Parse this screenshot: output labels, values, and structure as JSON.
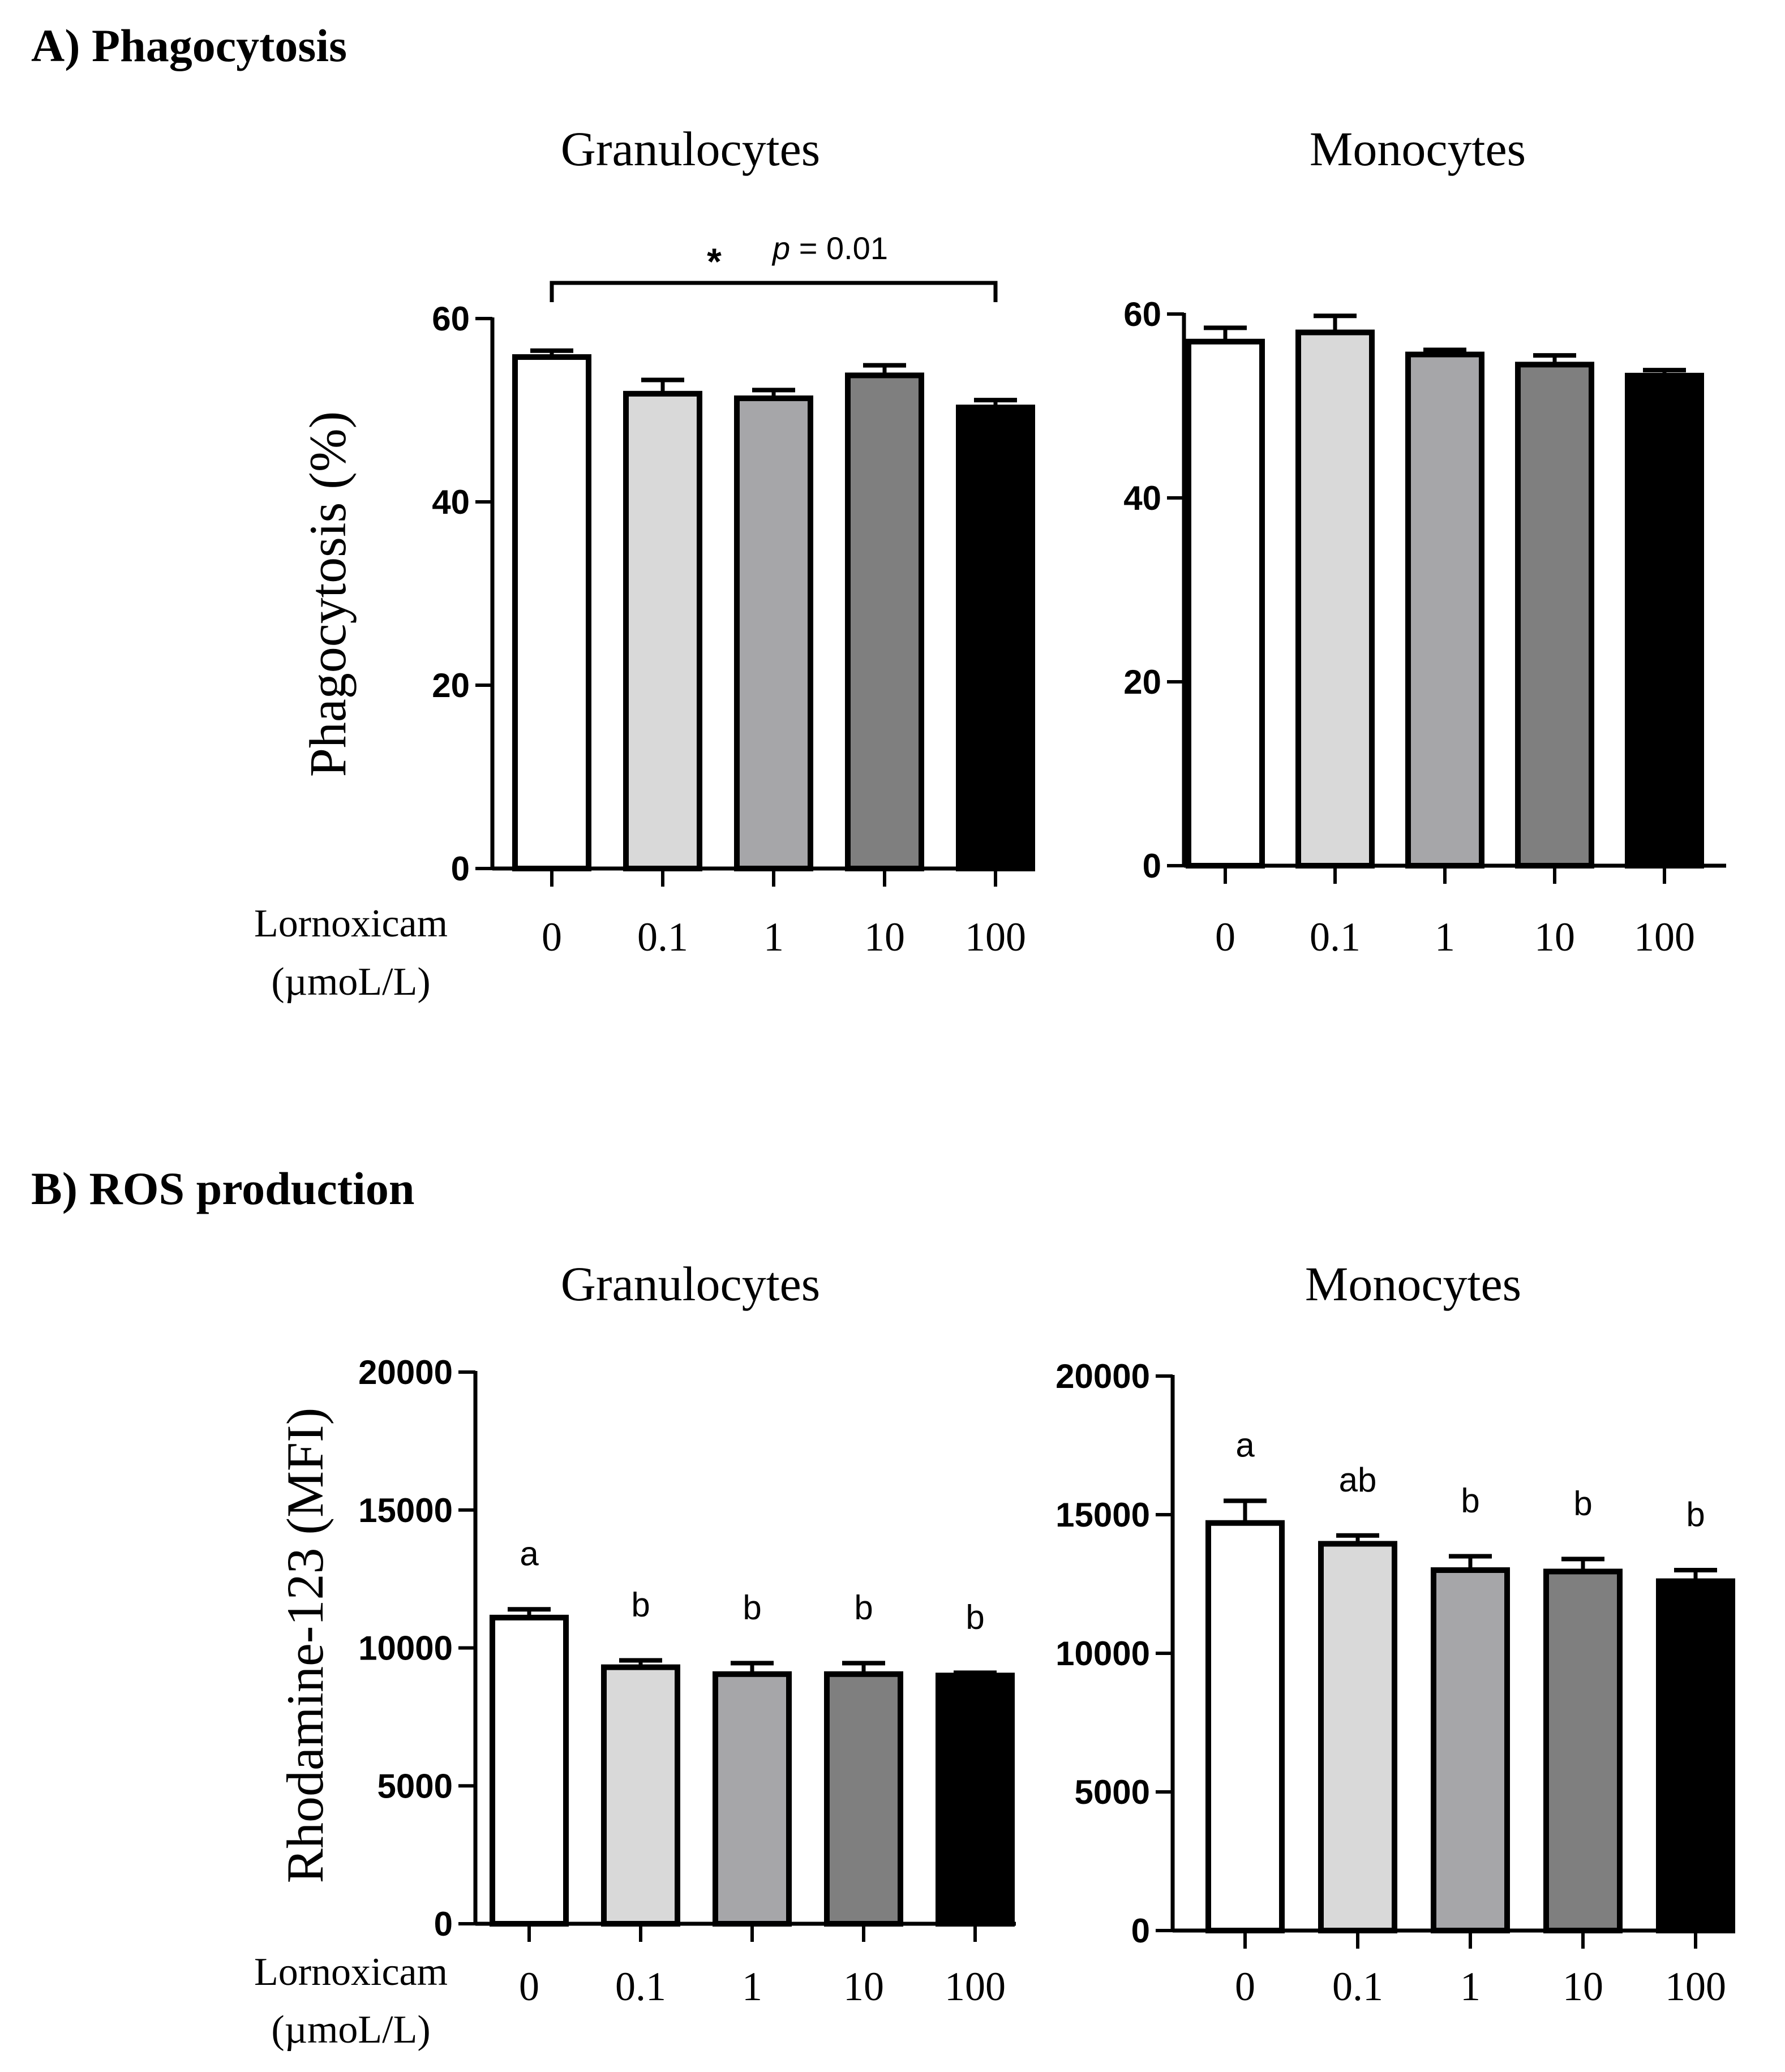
{
  "section_a": {
    "label": "A) Phagocytosis"
  },
  "section_b": {
    "label": "B) ROS production"
  },
  "x_axis": {
    "label_line1": "Lornoxicam",
    "label_line2": "(µmoL/L)"
  },
  "bar_colors": [
    "#ffffff",
    "#d9d9d9",
    "#a6a6a9",
    "#7f7f7f",
    "#000000"
  ],
  "chart_data": [
    {
      "id": "phago-gran",
      "section": "A",
      "type": "bar",
      "title": "Granulocytes",
      "ylabel": "Phagocytosis (%)",
      "categories": [
        "0",
        "0.1",
        "1",
        "10",
        "100"
      ],
      "values": [
        55.8,
        51.8,
        51.3,
        53.8,
        50.3
      ],
      "errors": [
        0.7,
        1.5,
        0.9,
        1.1,
        0.8
      ],
      "ylim": [
        0,
        60
      ],
      "yticks": [
        "0",
        "20",
        "40",
        "60"
      ],
      "significance": {
        "from": "0",
        "to": "100",
        "marker": "*",
        "p_prefix": "p",
        "p_text": "= 0.01"
      },
      "letters": []
    },
    {
      "id": "phago-mono",
      "section": "A",
      "type": "bar",
      "title": "Monocytes",
      "ylabel": "",
      "categories": [
        "0",
        "0.1",
        "1",
        "10",
        "100"
      ],
      "values": [
        57.0,
        58.0,
        55.6,
        54.5,
        53.3
      ],
      "errors": [
        1.5,
        1.8,
        0.5,
        1.0,
        0.6
      ],
      "ylim": [
        0,
        60
      ],
      "yticks": [
        "0",
        "20",
        "40",
        "60"
      ],
      "letters": []
    },
    {
      "id": "ros-gran",
      "section": "B",
      "type": "bar",
      "title": "Granulocytes",
      "ylabel": "Rhodamine-123 (MFI)",
      "categories": [
        "0",
        "0.1",
        "1",
        "10",
        "100"
      ],
      "values": [
        11100,
        9300,
        9050,
        9050,
        9000
      ],
      "errors": [
        300,
        250,
        400,
        400,
        100
      ],
      "ylim": [
        0,
        20000
      ],
      "yticks": [
        "0",
        "5000",
        "10000",
        "15000",
        "20000"
      ],
      "letters": [
        "a",
        "b",
        "b",
        "b",
        "b"
      ]
    },
    {
      "id": "ros-mono",
      "section": "B",
      "type": "bar",
      "title": "Monocytes",
      "ylabel": "",
      "categories": [
        "0",
        "0.1",
        "1",
        "10",
        "100"
      ],
      "values": [
        14700,
        13950,
        13000,
        12950,
        12600
      ],
      "errors": [
        800,
        300,
        500,
        450,
        400
      ],
      "ylim": [
        0,
        20000
      ],
      "yticks": [
        "0",
        "5000",
        "10000",
        "15000",
        "20000"
      ],
      "letters": [
        "a",
        "ab",
        "b",
        "b",
        "b"
      ]
    }
  ]
}
